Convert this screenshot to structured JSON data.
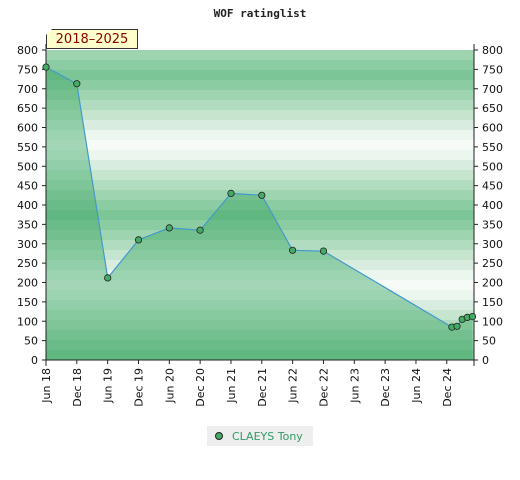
{
  "chart_data": {
    "type": "area",
    "title": "WOF ratinglist",
    "period": "2018–2025",
    "xlabel": "",
    "ylabel": "",
    "ylim": [
      0,
      800
    ],
    "y_ticks": [
      0,
      50,
      100,
      150,
      200,
      250,
      300,
      350,
      400,
      450,
      500,
      550,
      600,
      650,
      700,
      750,
      800
    ],
    "x_tick_labels": [
      "Jun 18",
      "Dec 18",
      "Jun 19",
      "Dec 19",
      "Jun 20",
      "Dec 20",
      "Jun 21",
      "Dec 21",
      "Jun 22",
      "Dec 22",
      "Jun 23",
      "Dec 23",
      "Jun 24",
      "Dec 24"
    ],
    "x_tick_months": [
      "2018-06",
      "2018-12",
      "2019-06",
      "2019-12",
      "2020-06",
      "2020-12",
      "2021-06",
      "2021-12",
      "2022-06",
      "2022-12",
      "2023-06",
      "2023-12",
      "2024-06",
      "2024-12"
    ],
    "series": [
      {
        "name": "CLAEYS Tony",
        "color": "#44aa66",
        "line_color": "#4499cc",
        "points": [
          {
            "x": "2018-06",
            "y": 756
          },
          {
            "x": "2018-12",
            "y": 713
          },
          {
            "x": "2019-06",
            "y": 212
          },
          {
            "x": "2019-12",
            "y": 310
          },
          {
            "x": "2020-06",
            "y": 341
          },
          {
            "x": "2020-12",
            "y": 335
          },
          {
            "x": "2021-06",
            "y": 430
          },
          {
            "x": "2021-12",
            "y": 425
          },
          {
            "x": "2022-06",
            "y": 283
          },
          {
            "x": "2022-12",
            "y": 281
          },
          {
            "x": "2025-01",
            "y": 85
          },
          {
            "x": "2025-02",
            "y": 87
          },
          {
            "x": "2025-03",
            "y": 105
          },
          {
            "x": "2025-04",
            "y": 110
          },
          {
            "x": "2025-05",
            "y": 112
          }
        ]
      }
    ],
    "grid": true,
    "legend_position": "bottom-center"
  }
}
